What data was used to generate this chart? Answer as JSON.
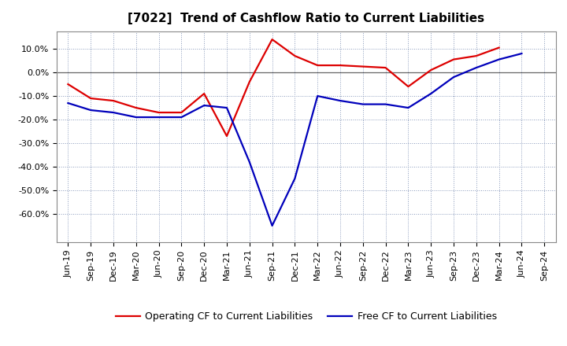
{
  "title": "[7022]  Trend of Cashflow Ratio to Current Liabilities",
  "x_labels": [
    "Jun-19",
    "Sep-19",
    "Dec-19",
    "Mar-20",
    "Jun-20",
    "Sep-20",
    "Dec-20",
    "Mar-21",
    "Jun-21",
    "Sep-21",
    "Dec-21",
    "Mar-22",
    "Jun-22",
    "Sep-22",
    "Dec-22",
    "Mar-23",
    "Jun-23",
    "Sep-23",
    "Dec-23",
    "Mar-24",
    "Jun-24",
    "Sep-24"
  ],
  "operating_cf": [
    -0.05,
    -0.11,
    -0.12,
    -0.15,
    -0.17,
    -0.17,
    -0.09,
    -0.27,
    -0.04,
    0.14,
    0.07,
    0.03,
    0.03,
    0.025,
    0.02,
    -0.06,
    0.01,
    0.055,
    0.07,
    0.105,
    null,
    null
  ],
  "free_cf": [
    -0.13,
    -0.16,
    -0.17,
    -0.19,
    -0.19,
    -0.19,
    -0.14,
    -0.15,
    -0.38,
    -0.65,
    -0.45,
    -0.1,
    -0.12,
    -0.135,
    -0.135,
    -0.15,
    -0.09,
    -0.02,
    0.02,
    0.055,
    0.08,
    null
  ],
  "ylim": [
    -0.72,
    0.175
  ],
  "yticks": [
    0.1,
    0.0,
    -0.1,
    -0.2,
    -0.3,
    -0.4,
    -0.5,
    -0.6
  ],
  "operating_color": "#dd0000",
  "free_color": "#0000bb",
  "grid_color": "#8899bb",
  "bg_color": "#ffffff",
  "fig_bg": "#ffffff",
  "legend_op": "Operating CF to Current Liabilities",
  "legend_free": "Free CF to Current Liabilities",
  "title_fontsize": 11,
  "tick_fontsize": 8,
  "legend_fontsize": 9
}
